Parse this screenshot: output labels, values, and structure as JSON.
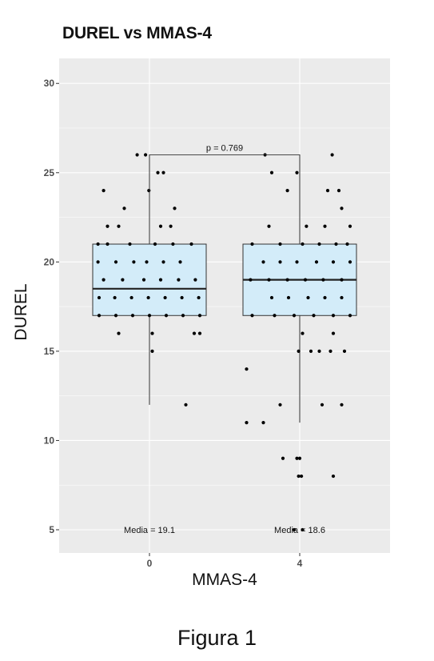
{
  "caption": "Figura 1",
  "chart_data": {
    "type": "boxplot",
    "title": "DUREL vs MMAS-4",
    "xlabel": "MMAS-4",
    "ylabel": "DUREL",
    "categories": [
      "0",
      "4"
    ],
    "ylim": [
      3.7,
      31.4
    ],
    "yticks": [
      5,
      10,
      15,
      20,
      25,
      30
    ],
    "grid": true,
    "colors": {
      "panel": "#ebebeb",
      "grid": "#ffffff",
      "box_fill": "#d3ecf9",
      "box_stroke": "#333333",
      "point": "#000000"
    },
    "boxes": [
      {
        "category": "0",
        "min": 12,
        "q1": 17,
        "median": 18.5,
        "q3": 21,
        "max": 26
      },
      {
        "category": "4",
        "min": 11,
        "q1": 17,
        "median": 19,
        "q3": 21,
        "max": 26
      }
    ],
    "significance": {
      "label": "p = 0.769",
      "y": 26
    },
    "annotations": [
      {
        "category": "0",
        "label": "Media =  19.1",
        "y": 5
      },
      {
        "category": "4",
        "label": "Media =  18.6",
        "y": 5
      }
    ],
    "points": [
      {
        "g": 0,
        "dx": -0.22,
        "y": 26
      },
      {
        "g": 0,
        "dx": -0.07,
        "y": 26
      },
      {
        "g": 0,
        "dx": 0.15,
        "y": 25
      },
      {
        "g": 0,
        "dx": 0.25,
        "y": 25
      },
      {
        "g": 0,
        "dx": -0.82,
        "y": 24
      },
      {
        "g": 0,
        "dx": -0.01,
        "y": 24
      },
      {
        "g": 0,
        "dx": -0.45,
        "y": 23
      },
      {
        "g": 0,
        "dx": 0.45,
        "y": 23
      },
      {
        "g": 0,
        "dx": -0.75,
        "y": 22
      },
      {
        "g": 0,
        "dx": -0.55,
        "y": 22
      },
      {
        "g": 0,
        "dx": 0.2,
        "y": 22
      },
      {
        "g": 0,
        "dx": 0.38,
        "y": 22
      },
      {
        "g": 0,
        "dx": -0.92,
        "y": 21
      },
      {
        "g": 0,
        "dx": -0.75,
        "y": 21
      },
      {
        "g": 0,
        "dx": -0.35,
        "y": 21
      },
      {
        "g": 0,
        "dx": 0.1,
        "y": 21
      },
      {
        "g": 0,
        "dx": 0.42,
        "y": 21
      },
      {
        "g": 0,
        "dx": 0.75,
        "y": 21
      },
      {
        "g": 0,
        "dx": -0.92,
        "y": 20
      },
      {
        "g": 0,
        "dx": -0.6,
        "y": 20
      },
      {
        "g": 0,
        "dx": -0.28,
        "y": 20
      },
      {
        "g": 0,
        "dx": -0.05,
        "y": 20
      },
      {
        "g": 0,
        "dx": 0.25,
        "y": 20
      },
      {
        "g": 0,
        "dx": 0.55,
        "y": 20
      },
      {
        "g": 0,
        "dx": -0.82,
        "y": 19
      },
      {
        "g": 0,
        "dx": -0.48,
        "y": 19
      },
      {
        "g": 0,
        "dx": -0.1,
        "y": 19
      },
      {
        "g": 0,
        "dx": 0.2,
        "y": 19
      },
      {
        "g": 0,
        "dx": 0.52,
        "y": 19
      },
      {
        "g": 0,
        "dx": 0.82,
        "y": 19
      },
      {
        "g": 0,
        "dx": -0.9,
        "y": 18
      },
      {
        "g": 0,
        "dx": -0.62,
        "y": 18
      },
      {
        "g": 0,
        "dx": -0.32,
        "y": 18
      },
      {
        "g": 0,
        "dx": -0.02,
        "y": 18
      },
      {
        "g": 0,
        "dx": 0.28,
        "y": 18
      },
      {
        "g": 0,
        "dx": 0.58,
        "y": 18
      },
      {
        "g": 0,
        "dx": 0.88,
        "y": 18
      },
      {
        "g": 0,
        "dx": -0.9,
        "y": 17
      },
      {
        "g": 0,
        "dx": -0.6,
        "y": 17
      },
      {
        "g": 0,
        "dx": -0.3,
        "y": 17
      },
      {
        "g": 0,
        "dx": 0.0,
        "y": 17
      },
      {
        "g": 0,
        "dx": 0.3,
        "y": 17
      },
      {
        "g": 0,
        "dx": 0.6,
        "y": 17
      },
      {
        "g": 0,
        "dx": 0.9,
        "y": 17
      },
      {
        "g": 0,
        "dx": -0.55,
        "y": 16
      },
      {
        "g": 0,
        "dx": 0.05,
        "y": 16
      },
      {
        "g": 0,
        "dx": 0.8,
        "y": 16
      },
      {
        "g": 0,
        "dx": 0.9,
        "y": 16
      },
      {
        "g": 0,
        "dx": 0.05,
        "y": 15
      },
      {
        "g": 0,
        "dx": 0.65,
        "y": 12
      },
      {
        "g": 1,
        "dx": -0.62,
        "y": 26
      },
      {
        "g": 1,
        "dx": -0.5,
        "y": 25
      },
      {
        "g": 1,
        "dx": -0.05,
        "y": 25
      },
      {
        "g": 1,
        "dx": 0.58,
        "y": 26
      },
      {
        "g": 1,
        "dx": -0.22,
        "y": 24
      },
      {
        "g": 1,
        "dx": 0.5,
        "y": 24
      },
      {
        "g": 1,
        "dx": 0.7,
        "y": 24
      },
      {
        "g": 1,
        "dx": 0.75,
        "y": 23
      },
      {
        "g": 1,
        "dx": -0.55,
        "y": 22
      },
      {
        "g": 1,
        "dx": 0.12,
        "y": 22
      },
      {
        "g": 1,
        "dx": 0.45,
        "y": 22
      },
      {
        "g": 1,
        "dx": 0.9,
        "y": 22
      },
      {
        "g": 1,
        "dx": -0.85,
        "y": 21
      },
      {
        "g": 1,
        "dx": -0.35,
        "y": 21
      },
      {
        "g": 1,
        "dx": 0.05,
        "y": 21
      },
      {
        "g": 1,
        "dx": 0.35,
        "y": 21
      },
      {
        "g": 1,
        "dx": 0.65,
        "y": 21
      },
      {
        "g": 1,
        "dx": 0.85,
        "y": 21
      },
      {
        "g": 1,
        "dx": -0.65,
        "y": 20
      },
      {
        "g": 1,
        "dx": -0.35,
        "y": 20
      },
      {
        "g": 1,
        "dx": -0.05,
        "y": 20
      },
      {
        "g": 1,
        "dx": 0.3,
        "y": 20
      },
      {
        "g": 1,
        "dx": 0.6,
        "y": 20
      },
      {
        "g": 1,
        "dx": 0.9,
        "y": 20
      },
      {
        "g": 1,
        "dx": -0.88,
        "y": 19
      },
      {
        "g": 1,
        "dx": -0.55,
        "y": 19
      },
      {
        "g": 1,
        "dx": -0.22,
        "y": 19
      },
      {
        "g": 1,
        "dx": 0.1,
        "y": 19
      },
      {
        "g": 1,
        "dx": 0.42,
        "y": 19
      },
      {
        "g": 1,
        "dx": 0.75,
        "y": 19
      },
      {
        "g": 1,
        "dx": -0.5,
        "y": 18
      },
      {
        "g": 1,
        "dx": -0.2,
        "y": 18
      },
      {
        "g": 1,
        "dx": 0.15,
        "y": 18
      },
      {
        "g": 1,
        "dx": 0.45,
        "y": 18
      },
      {
        "g": 1,
        "dx": 0.75,
        "y": 18
      },
      {
        "g": 1,
        "dx": -0.85,
        "y": 17
      },
      {
        "g": 1,
        "dx": -0.45,
        "y": 17
      },
      {
        "g": 1,
        "dx": -0.1,
        "y": 17
      },
      {
        "g": 1,
        "dx": 0.25,
        "y": 17
      },
      {
        "g": 1,
        "dx": 0.6,
        "y": 17
      },
      {
        "g": 1,
        "dx": 0.9,
        "y": 17
      },
      {
        "g": 1,
        "dx": 0.05,
        "y": 16
      },
      {
        "g": 1,
        "dx": 0.6,
        "y": 16
      },
      {
        "g": 1,
        "dx": -0.02,
        "y": 15
      },
      {
        "g": 1,
        "dx": 0.2,
        "y": 15
      },
      {
        "g": 1,
        "dx": 0.35,
        "y": 15
      },
      {
        "g": 1,
        "dx": 0.55,
        "y": 15
      },
      {
        "g": 1,
        "dx": 0.8,
        "y": 15
      },
      {
        "g": 1,
        "dx": -0.95,
        "y": 14
      },
      {
        "g": 1,
        "dx": -0.35,
        "y": 12
      },
      {
        "g": 1,
        "dx": 0.4,
        "y": 12
      },
      {
        "g": 1,
        "dx": 0.75,
        "y": 12
      },
      {
        "g": 1,
        "dx": -0.95,
        "y": 11
      },
      {
        "g": 1,
        "dx": -0.65,
        "y": 11
      },
      {
        "g": 1,
        "dx": -0.3,
        "y": 9
      },
      {
        "g": 1,
        "dx": -0.05,
        "y": 9
      },
      {
        "g": 1,
        "dx": 0.0,
        "y": 9
      },
      {
        "g": 1,
        "dx": -0.02,
        "y": 8
      },
      {
        "g": 1,
        "dx": 0.03,
        "y": 8
      },
      {
        "g": 1,
        "dx": 0.6,
        "y": 8
      },
      {
        "g": 1,
        "dx": -0.1,
        "y": 5
      },
      {
        "g": 1,
        "dx": 0.05,
        "y": 5
      }
    ]
  }
}
